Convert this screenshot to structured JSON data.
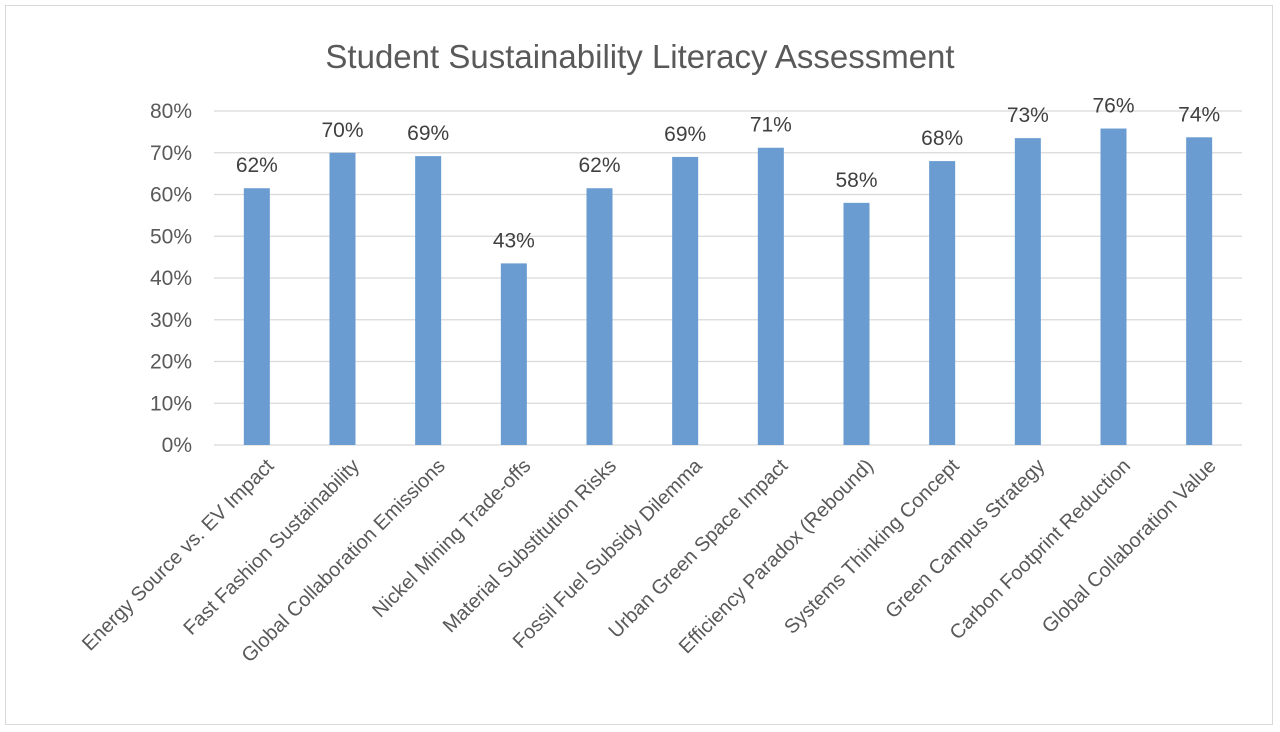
{
  "chart_data": {
    "type": "bar",
    "title": "Student Sustainability Literacy Assessment",
    "xlabel": "",
    "ylabel": "",
    "ylim": [
      0,
      0.8
    ],
    "yticks": [
      0,
      0.1,
      0.2,
      0.3,
      0.4,
      0.5,
      0.6,
      0.7,
      0.8
    ],
    "ytick_labels": [
      "0%",
      "10%",
      "20%",
      "30%",
      "40%",
      "50%",
      "60%",
      "70%",
      "80%"
    ],
    "grid": true,
    "legend": "none",
    "bar_color": "#6a9bd1",
    "categories": [
      "Energy Source vs. EV Impact",
      "Fast Fashion Sustainability",
      "Global Collaboration Emissions",
      "Nickel Mining Trade-offs",
      "Material Substitution Risks",
      "Fossil Fuel Subsidy Dilemma",
      "Urban Green Space Impact",
      "Efficiency Paradox (Rebound)",
      "Systems Thinking Concept",
      "Green Campus Strategy",
      "Carbon Footprint Reduction",
      "Global Collaboration Value"
    ],
    "values": [
      0.615,
      0.7,
      0.692,
      0.435,
      0.615,
      0.69,
      0.712,
      0.58,
      0.68,
      0.735,
      0.758,
      0.737
    ],
    "data_labels": [
      "62%",
      "70%",
      "69%",
      "43%",
      "62%",
      "69%",
      "71%",
      "58%",
      "68%",
      "73%",
      "76%",
      "74%"
    ]
  }
}
